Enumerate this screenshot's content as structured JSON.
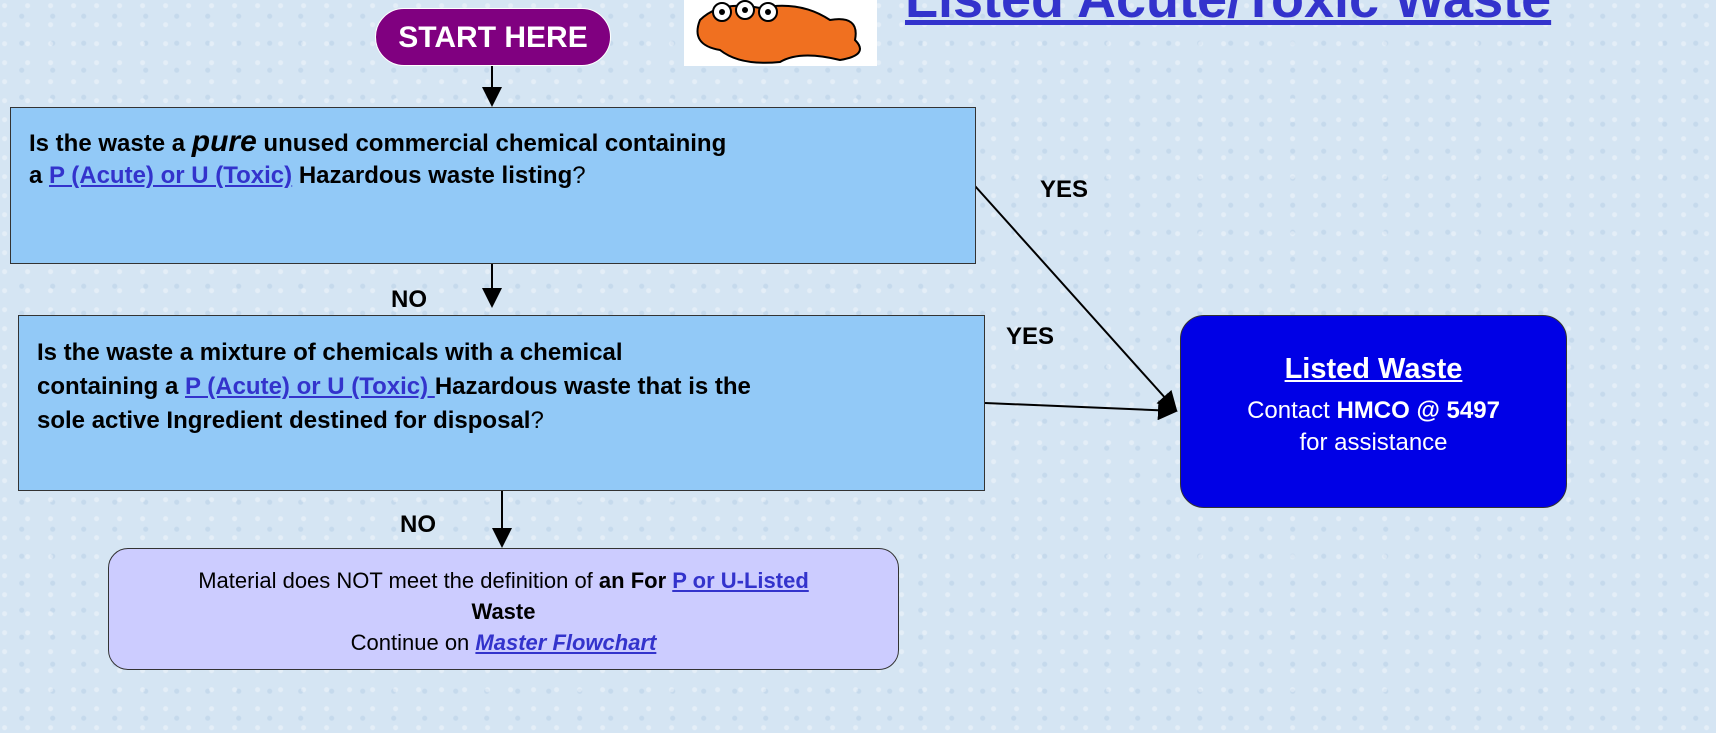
{
  "title": "Listed Acute/Toxic Waste",
  "start": "START HERE",
  "question1": {
    "line1": [
      "Is the waste a ",
      "pure",
      " unused commercial chemical containing"
    ],
    "line2": [
      "a ",
      "P (Acute) or U (Toxic)",
      " Hazardous waste listing",
      "?"
    ]
  },
  "question2": {
    "line1": "Is the waste a mixture of chemicals with a chemical",
    "line2": [
      "containing a ",
      "P (Acute) or U (Toxic) ",
      "Hazardous waste that is the"
    ],
    "line3": [
      "sole active Ingredient destined for disposal",
      "?"
    ]
  },
  "labels": {
    "yes1": "YES",
    "yes2": "YES",
    "no1": "NO",
    "no2": "NO"
  },
  "result": {
    "title": "Listed Waste",
    "line1": [
      "Contact ",
      "HMCO @ 5497"
    ],
    "line2": "for assistance"
  },
  "outcome": {
    "line1": [
      "Material does NOT meet the definition of ",
      "an For ",
      "P or U-Listed "
    ],
    "line2": "Waste",
    "line3": [
      "Continue on ",
      "Master Flowchart"
    ]
  }
}
